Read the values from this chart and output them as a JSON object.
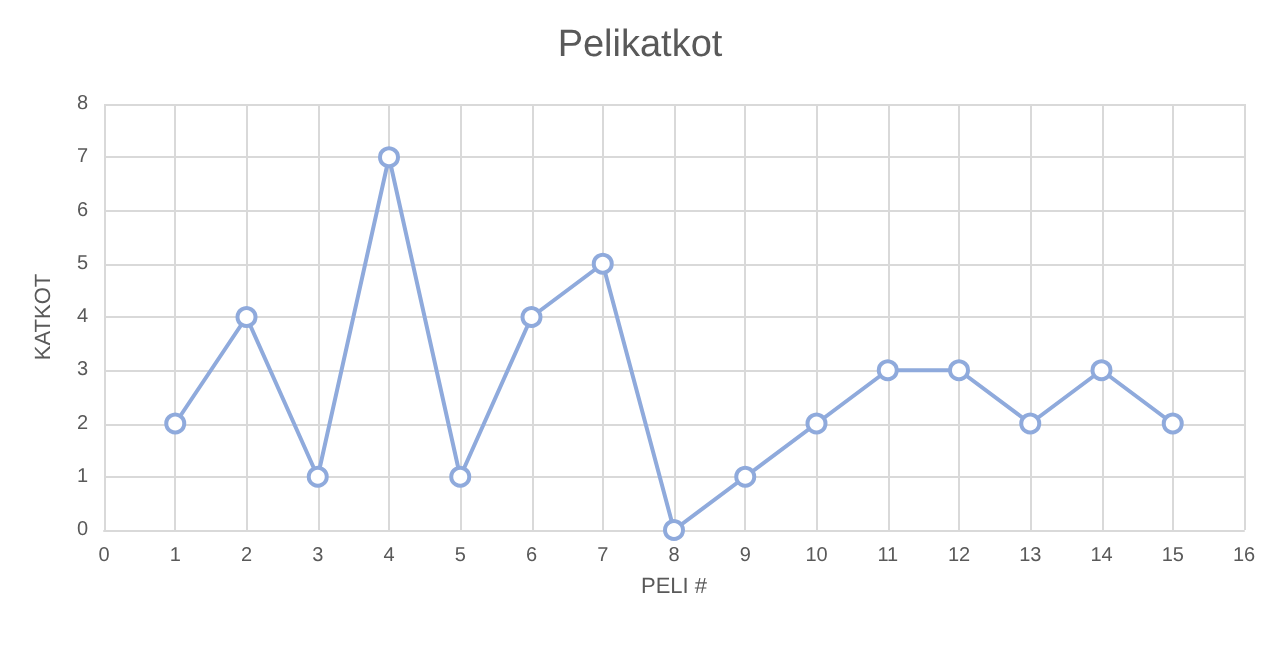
{
  "chart_data": {
    "type": "line",
    "title": "Pelikatkot",
    "xlabel": "PELI #",
    "ylabel": "KATKOT",
    "x": [
      1,
      2,
      3,
      4,
      5,
      6,
      7,
      8,
      9,
      10,
      11,
      12,
      13,
      14,
      15
    ],
    "series": [
      {
        "color": "#8faadc",
        "values": [
          2,
          4,
          1,
          7,
          1,
          4,
          5,
          0,
          1,
          2,
          3,
          3,
          2,
          3,
          2
        ]
      }
    ],
    "xlim": [
      0,
      16
    ],
    "xticks": [
      0,
      1,
      2,
      3,
      4,
      5,
      6,
      7,
      8,
      9,
      10,
      11,
      12,
      13,
      14,
      15,
      16
    ],
    "ylim": [
      0,
      8
    ],
    "yticks": [
      0,
      1,
      2,
      3,
      4,
      5,
      6,
      7,
      8
    ],
    "grid": true,
    "marker": "circle",
    "line_style": "solid"
  }
}
